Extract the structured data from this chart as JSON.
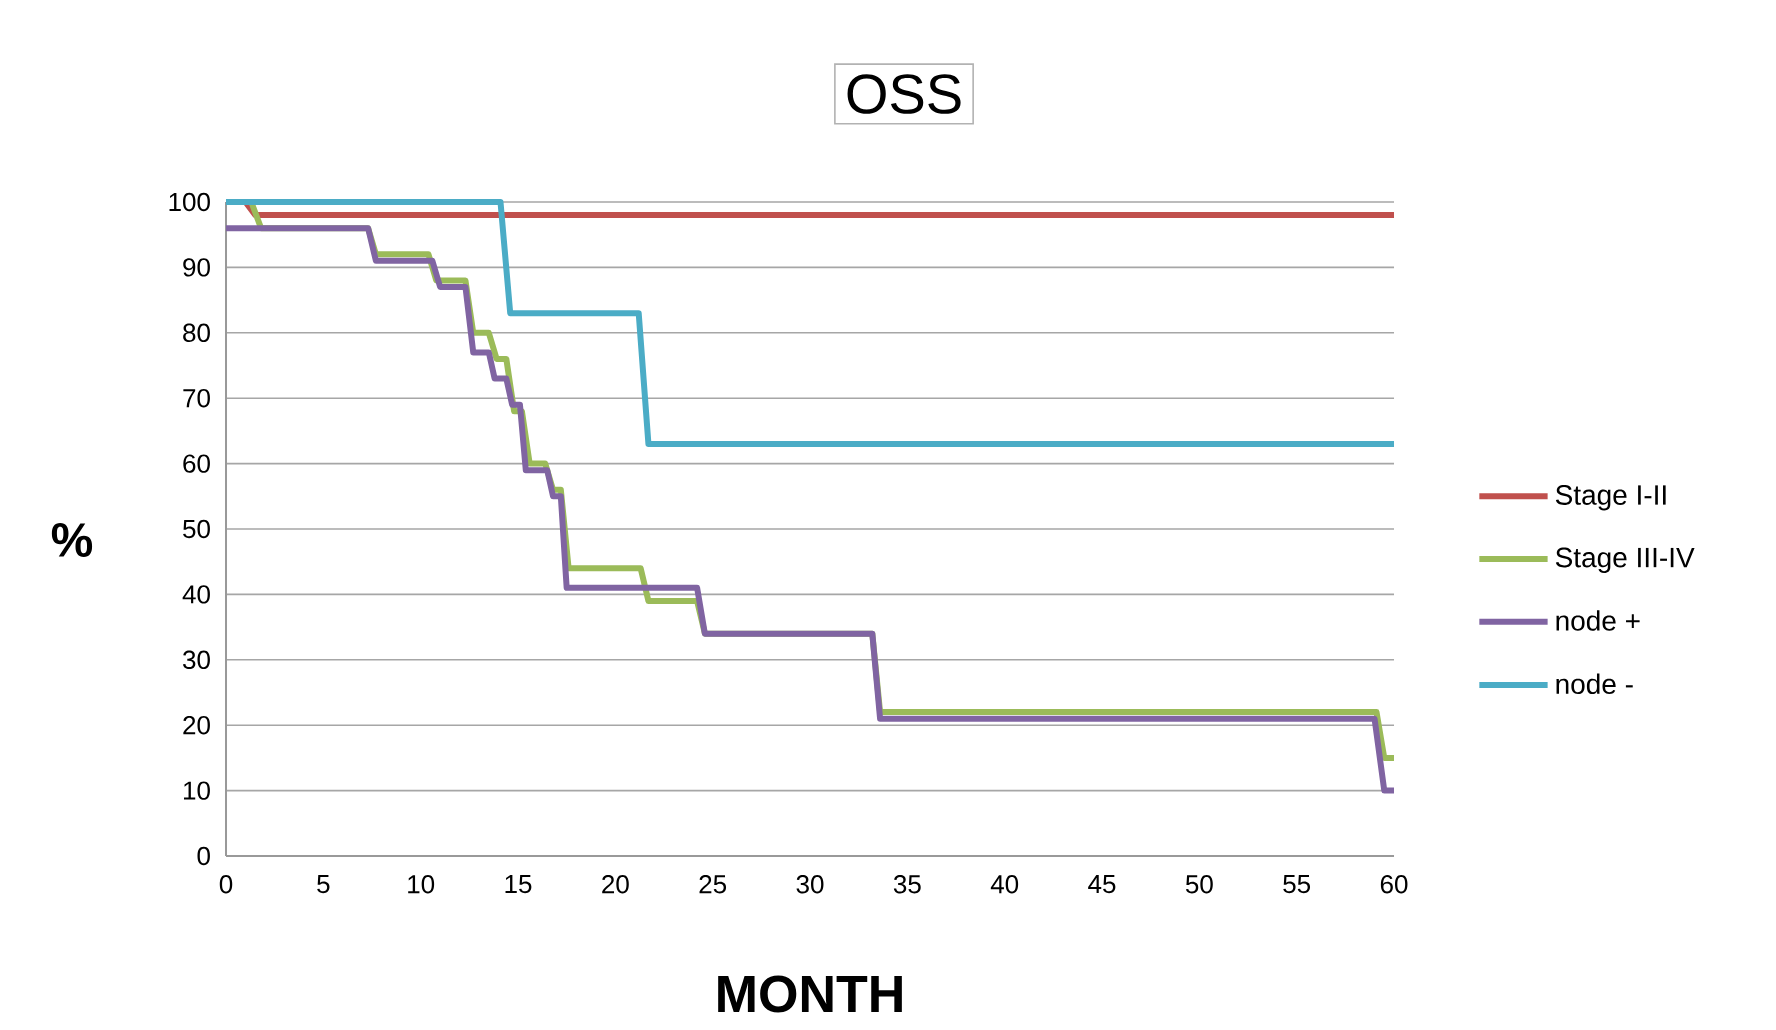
{
  "chart_data": {
    "type": "line",
    "title": "OSS",
    "xlabel": "MONTH",
    "ylabel": "%",
    "xlim": [
      0,
      60
    ],
    "xticks": [
      0,
      5,
      10,
      15,
      20,
      25,
      30,
      35,
      40,
      45,
      50,
      55,
      60
    ],
    "ylim": [
      0,
      100
    ],
    "yticks": [
      0,
      10,
      20,
      30,
      40,
      50,
      60,
      70,
      80,
      90,
      100
    ],
    "grid": "y",
    "legend": "right",
    "marker": "none",
    "line_style": "solid",
    "series": [
      {
        "name": "Stage I-II",
        "color": "#c0504d",
        "x": [
          0,
          1.0,
          1.5,
          60
        ],
        "values": [
          100,
          100,
          98,
          98
        ]
      },
      {
        "name": "Stage III-IV",
        "color": "#9bbb59",
        "x": [
          0,
          1.3,
          1.8,
          7.3,
          7.7,
          10.4,
          10.8,
          12.3,
          12.7,
          13.5,
          13.9,
          14.4,
          14.8,
          15.2,
          15.6,
          16.4,
          16.8,
          17.2,
          17.6,
          21.3,
          21.7,
          24.2,
          24.6,
          33.2,
          33.6,
          59.1,
          59.5,
          60
        ],
        "values": [
          100,
          100,
          96,
          96,
          92,
          92,
          88,
          88,
          80,
          80,
          76,
          76,
          68,
          68,
          60,
          60,
          56,
          56,
          44,
          44,
          39,
          39,
          34,
          34,
          22,
          22,
          15,
          15
        ]
      },
      {
        "name": "node +",
        "color": "#8064a2",
        "x": [
          0,
          7.3,
          7.7,
          10.6,
          11.0,
          12.3,
          12.7,
          13.5,
          13.8,
          14.4,
          14.7,
          15.1,
          15.4,
          16.5,
          16.8,
          17.2,
          17.5,
          24.2,
          24.6,
          33.2,
          33.6,
          59.0,
          59.5,
          60
        ],
        "values": [
          96,
          96,
          91,
          91,
          87,
          87,
          77,
          77,
          73,
          73,
          69,
          69,
          59,
          59,
          55,
          55,
          41,
          41,
          34,
          34,
          21,
          21,
          10,
          10
        ]
      },
      {
        "name": "node -",
        "color": "#4bacc6",
        "x": [
          0,
          14.1,
          14.6,
          21.2,
          21.7,
          60
        ],
        "values": [
          100,
          100,
          83,
          83,
          63,
          63
        ]
      }
    ]
  }
}
